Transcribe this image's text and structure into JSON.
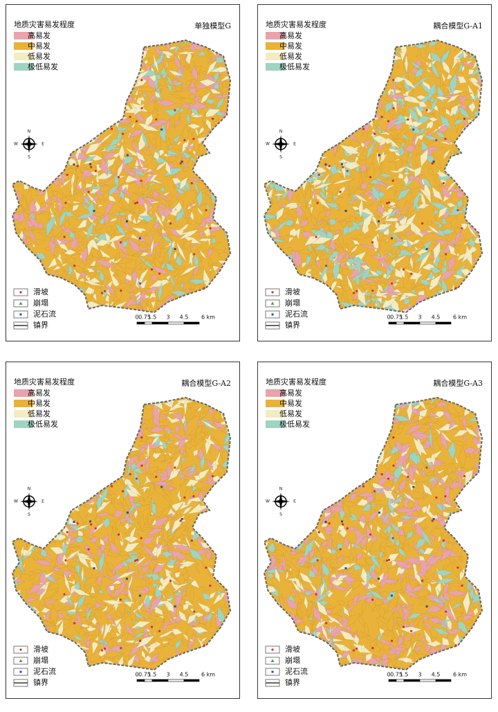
{
  "legend": {
    "title": "地质灾害易发程度",
    "classes": [
      "高易发",
      "中易发",
      "低易发",
      "极低易发"
    ]
  },
  "point_legend": [
    "滑坡",
    "崩塌",
    "泥石流",
    "镇界"
  ],
  "compass": {
    "north": "N",
    "south": "S",
    "west": "W",
    "east": "E"
  },
  "scale_bar": [
    "0",
    "0.75",
    "1.5",
    "3",
    "4.5",
    "6 km"
  ],
  "panels": [
    {
      "title": "单独模型G"
    },
    {
      "title": "耦合模型G-A1"
    },
    {
      "title": "耦合模型G-A2"
    },
    {
      "title": "耦合模型G-A3"
    }
  ]
}
